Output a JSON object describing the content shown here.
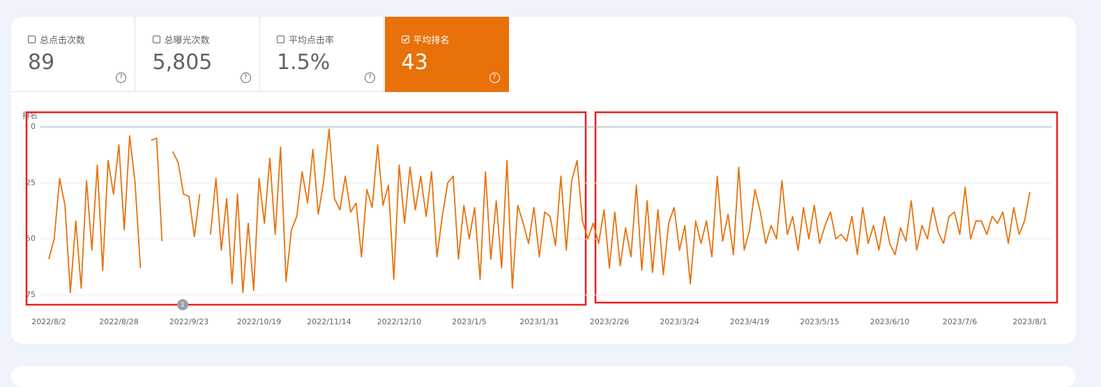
{
  "metrics": [
    {
      "label": "总点击次数",
      "value": "89",
      "checked": false
    },
    {
      "label": "总曝光次数",
      "value": "5,805",
      "checked": false
    },
    {
      "label": "平均点击率",
      "value": "1.5%",
      "checked": false
    },
    {
      "label": "平均排名",
      "value": "43",
      "checked": true
    }
  ],
  "annotation": "1",
  "chart_data": {
    "type": "line",
    "y_axis_label": "排名",
    "y_inverted": true,
    "ylim": [
      0,
      80
    ],
    "yticks": [
      0,
      25,
      50,
      75
    ],
    "grid": true,
    "categories": [
      "2022/8/2",
      null,
      null,
      null,
      null,
      null,
      null,
      null,
      null,
      null,
      null,
      null,
      null,
      "2022/8/28",
      null,
      null,
      null,
      null,
      null,
      null,
      null,
      null,
      null,
      null,
      null,
      null,
      "2022/9/23",
      null,
      null,
      null,
      null,
      null,
      null,
      null,
      null,
      null,
      null,
      null,
      null,
      "2022/10/19",
      null,
      null,
      null,
      null,
      null,
      null,
      null,
      null,
      null,
      null,
      null,
      null,
      "2022/11/14",
      null,
      null,
      null,
      null,
      null,
      null,
      null,
      null,
      null,
      null,
      null,
      null,
      "2022/12/10",
      null,
      null,
      null,
      null,
      null,
      null,
      null,
      null,
      null,
      null,
      null,
      null,
      "2023/1/5",
      null,
      null,
      null,
      null,
      null,
      null,
      null,
      null,
      null,
      null,
      null,
      null,
      "2023/1/31",
      null,
      null,
      null,
      null,
      null,
      null,
      null,
      null,
      null,
      null,
      null,
      null,
      "2023/2/26",
      null,
      null,
      null,
      null,
      null,
      null,
      null,
      null,
      null,
      null,
      null,
      null,
      "2023/3/24",
      null,
      null,
      null,
      null,
      null,
      null,
      null,
      null,
      null,
      null,
      null,
      null,
      "2023/4/19",
      null,
      null,
      null,
      null,
      null,
      null,
      null,
      null,
      null,
      null,
      null,
      null,
      "2023/5/15",
      null,
      null,
      null,
      null,
      null,
      null,
      null,
      null,
      null,
      null,
      null,
      null,
      "2023/6/10",
      null,
      null,
      null,
      null,
      null,
      null,
      null,
      null,
      null,
      null,
      null,
      null,
      "2023/7/6",
      null,
      null,
      null,
      null,
      null,
      null,
      null,
      null,
      null,
      null,
      null,
      null,
      "2023/8/1"
    ],
    "series": [
      {
        "name": "平均排名",
        "color": "#e8710a",
        "values": [
          59,
          50,
          23,
          35,
          74,
          42,
          72,
          24,
          55,
          17,
          64,
          15,
          30,
          8,
          46,
          4,
          25,
          63,
          null,
          6,
          5,
          51,
          null,
          11,
          16,
          30,
          31,
          49,
          30,
          null,
          48,
          23,
          55,
          32,
          70,
          30,
          74,
          43,
          73,
          23,
          43,
          14,
          48,
          9,
          69,
          46,
          40,
          20,
          34,
          10,
          39,
          24,
          1,
          32,
          37,
          22,
          38,
          34,
          58,
          28,
          36,
          8,
          35,
          26,
          68,
          17,
          43,
          18,
          37,
          22,
          40,
          20,
          58,
          40,
          25,
          22,
          59,
          35,
          50,
          36,
          68,
          20,
          59,
          33,
          63,
          15,
          72,
          35,
          43,
          52,
          36,
          58,
          38,
          40,
          53,
          22,
          55,
          24,
          15,
          42,
          50,
          43,
          52,
          37,
          63,
          38,
          62,
          45,
          58,
          26,
          64,
          33,
          65,
          37,
          66,
          43,
          36,
          55,
          44,
          70,
          42,
          52,
          42,
          58,
          22,
          51,
          39,
          57,
          18,
          55,
          46,
          28,
          38,
          52,
          44,
          50,
          24,
          48,
          40,
          55,
          36,
          50,
          35,
          52,
          44,
          38,
          50,
          48,
          51,
          40,
          57,
          36,
          52,
          44,
          55,
          40,
          52,
          57,
          45,
          51,
          33,
          55,
          44,
          50,
          36,
          47,
          52,
          40,
          38,
          48,
          27,
          50,
          42,
          42,
          48,
          40,
          43,
          38,
          52,
          36,
          48,
          42,
          29
        ]
      }
    ]
  }
}
